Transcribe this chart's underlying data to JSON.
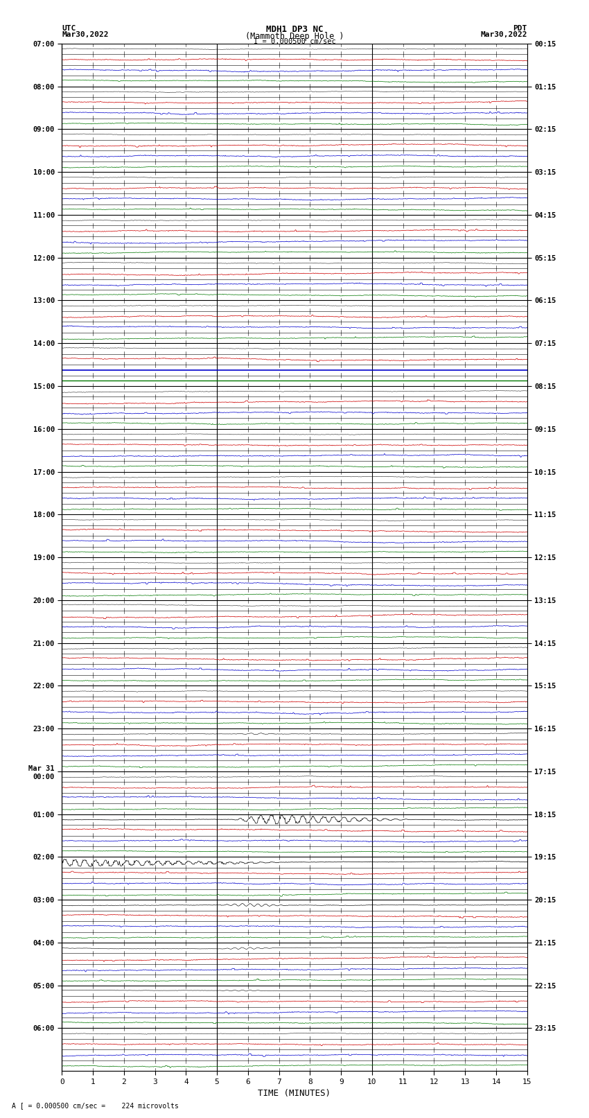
{
  "title_line1": "MDH1 DP3 NC",
  "title_line2": "(Mammoth Deep Hole )",
  "scale_label": "I = 0.000500 cm/sec",
  "left_date": "Mar30,2022",
  "right_date": "Mar30,2022",
  "left_tz": "UTC",
  "right_tz": "PDT",
  "bottom_label": "TIME (MINUTES)",
  "bottom_note": "A [ = 0.000500 cm/sec =    224 microvolts",
  "bg_color": "#ffffff",
  "left_labels": [
    "07:00",
    "08:00",
    "09:00",
    "10:00",
    "11:00",
    "12:00",
    "13:00",
    "14:00",
    "15:00",
    "16:00",
    "17:00",
    "18:00",
    "19:00",
    "20:00",
    "21:00",
    "22:00",
    "23:00",
    "Mar 31\n00:00",
    "01:00",
    "02:00",
    "03:00",
    "04:00",
    "05:00",
    "06:00"
  ],
  "right_labels": [
    "00:15",
    "01:15",
    "02:15",
    "03:15",
    "04:15",
    "05:15",
    "06:15",
    "07:15",
    "08:15",
    "09:15",
    "10:15",
    "11:15",
    "12:15",
    "13:15",
    "14:15",
    "15:15",
    "16:15",
    "17:15",
    "18:15",
    "19:15",
    "20:15",
    "21:15",
    "22:15",
    "23:15"
  ],
  "n_hours": 24,
  "traces_per_hour": 4,
  "x_min": 0,
  "x_max": 15,
  "blue_signal_hour": 7,
  "green_signal_hour": 7,
  "quake_starts_hour": 16,
  "quake_peak_hour": 18,
  "quake_minute": 5.5
}
